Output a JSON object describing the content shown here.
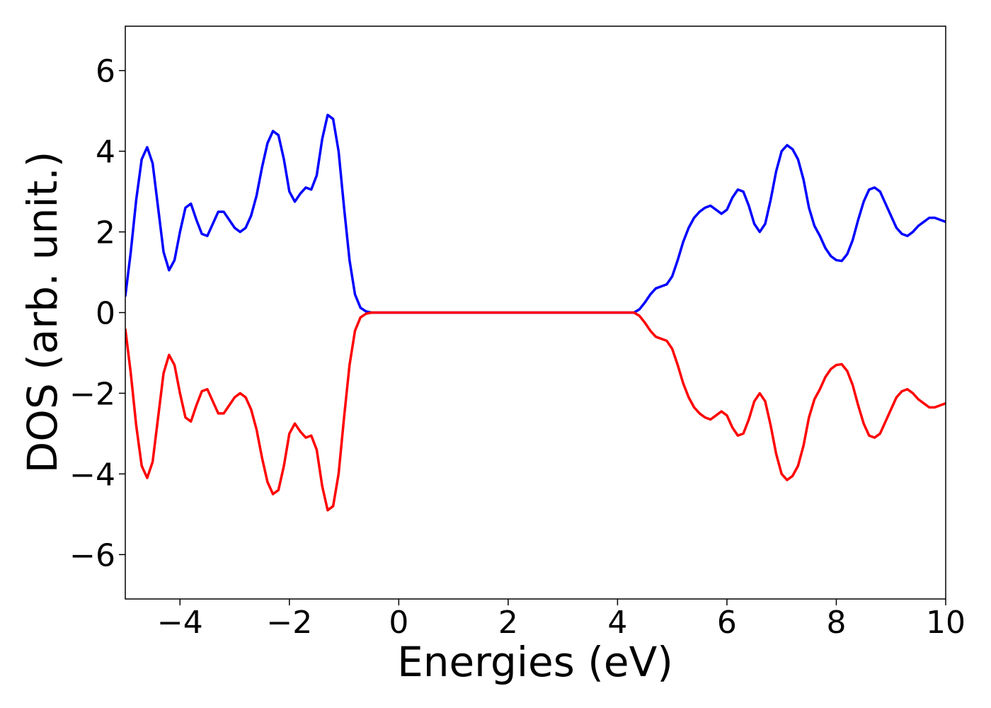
{
  "chart_data": {
    "type": "line",
    "x_label": "Energies (eV)",
    "y_label": "DOS (arb. unit.)",
    "xlim": [
      -5,
      10
    ],
    "ylim": [
      -7.1,
      7.1
    ],
    "xticks": [
      {
        "value": -4,
        "label": "−4"
      },
      {
        "value": -2,
        "label": "−2"
      },
      0,
      2,
      4,
      6,
      8,
      10
    ],
    "yticks": [
      {
        "value": -6,
        "label": "−6"
      },
      {
        "value": -4,
        "label": "−4"
      },
      {
        "value": -2,
        "label": "−2"
      },
      0,
      2,
      4,
      6
    ],
    "grid": false,
    "x": [
      -5,
      -4.9,
      -4.8,
      -4.7,
      -4.6,
      -4.5,
      -4.4,
      -4.3,
      -4.2,
      -4.1,
      -4,
      -3.9,
      -3.8,
      -3.7,
      -3.6,
      -3.5,
      -3.4,
      -3.3,
      -3.2,
      -3.1,
      -3,
      -2.9,
      -2.8,
      -2.7,
      -2.6,
      -2.5,
      -2.4,
      -2.3,
      -2.2,
      -2.1,
      -2,
      -1.9,
      -1.8,
      -1.7,
      -1.6,
      -1.5,
      -1.4,
      -1.3,
      -1.2,
      -1.1,
      -1,
      -0.9,
      -0.8,
      -0.7,
      -0.6,
      -0.5,
      0,
      1,
      2,
      3,
      4,
      4.3,
      4.4,
      4.5,
      4.6,
      4.7,
      4.8,
      4.9,
      5,
      5.1,
      5.2,
      5.3,
      5.4,
      5.5,
      5.6,
      5.7,
      5.8,
      5.9,
      6,
      6.1,
      6.2,
      6.3,
      6.4,
      6.5,
      6.6,
      6.7,
      6.8,
      6.9,
      7,
      7.1,
      7.2,
      7.3,
      7.4,
      7.5,
      7.6,
      7.7,
      7.8,
      7.9,
      8,
      8.1,
      8.2,
      8.3,
      8.4,
      8.5,
      8.6,
      8.7,
      8.8,
      8.9,
      9,
      9.1,
      9.2,
      9.3,
      9.4,
      9.5,
      9.6,
      9.7,
      9.8,
      9.9,
      10
    ],
    "series": [
      {
        "color": "#0000ff",
        "values": [
          0.4,
          1.5,
          2.8,
          3.8,
          4.1,
          3.7,
          2.6,
          1.5,
          1.05,
          1.3,
          2,
          2.6,
          2.7,
          2.3,
          1.95,
          1.9,
          2.2,
          2.5,
          2.5,
          2.3,
          2.1,
          2,
          2.1,
          2.4,
          2.9,
          3.6,
          4.2,
          4.5,
          4.4,
          3.8,
          3,
          2.75,
          2.95,
          3.1,
          3.05,
          3.4,
          4.3,
          4.9,
          4.8,
          4,
          2.6,
          1.3,
          0.45,
          0.12,
          0.03,
          0,
          0,
          0,
          0,
          0,
          0,
          0,
          0.08,
          0.25,
          0.45,
          0.6,
          0.65,
          0.7,
          0.9,
          1.3,
          1.75,
          2.1,
          2.35,
          2.5,
          2.6,
          2.65,
          2.55,
          2.45,
          2.55,
          2.85,
          3.05,
          3,
          2.65,
          2.2,
          2,
          2.2,
          2.8,
          3.5,
          4,
          4.15,
          4.05,
          3.8,
          3.3,
          2.6,
          2.15,
          1.9,
          1.6,
          1.4,
          1.3,
          1.28,
          1.45,
          1.8,
          2.3,
          2.75,
          3.05,
          3.1,
          3,
          2.7,
          2.4,
          2.1,
          1.95,
          1.9,
          2,
          2.15,
          2.25,
          2.35,
          2.35,
          2.3,
          2.25
        ]
      },
      {
        "color": "#ff0000",
        "values": [
          -0.4,
          -1.5,
          -2.8,
          -3.8,
          -4.1,
          -3.7,
          -2.6,
          -1.5,
          -1.05,
          -1.3,
          -2,
          -2.6,
          -2.7,
          -2.3,
          -1.95,
          -1.9,
          -2.2,
          -2.5,
          -2.5,
          -2.3,
          -2.1,
          -2,
          -2.1,
          -2.4,
          -2.9,
          -3.6,
          -4.2,
          -4.5,
          -4.4,
          -3.8,
          -3,
          -2.75,
          -2.95,
          -3.1,
          -3.05,
          -3.4,
          -4.3,
          -4.9,
          -4.8,
          -4,
          -2.6,
          -1.3,
          -0.45,
          -0.12,
          -0.03,
          0,
          0,
          0,
          0,
          0,
          0,
          0,
          -0.08,
          -0.25,
          -0.45,
          -0.6,
          -0.65,
          -0.7,
          -0.9,
          -1.3,
          -1.75,
          -2.1,
          -2.35,
          -2.5,
          -2.6,
          -2.65,
          -2.55,
          -2.45,
          -2.55,
          -2.85,
          -3.05,
          -3,
          -2.65,
          -2.2,
          -2,
          -2.2,
          -2.8,
          -3.5,
          -4,
          -4.15,
          -4.05,
          -3.8,
          -3.3,
          -2.6,
          -2.15,
          -1.9,
          -1.6,
          -1.4,
          -1.3,
          -1.28,
          -1.45,
          -1.8,
          -2.3,
          -2.75,
          -3.05,
          -3.1,
          -3,
          -2.7,
          -2.4,
          -2.1,
          -1.95,
          -1.9,
          -2,
          -2.15,
          -2.25,
          -2.35,
          -2.35,
          -2.3,
          -2.25
        ]
      }
    ]
  }
}
